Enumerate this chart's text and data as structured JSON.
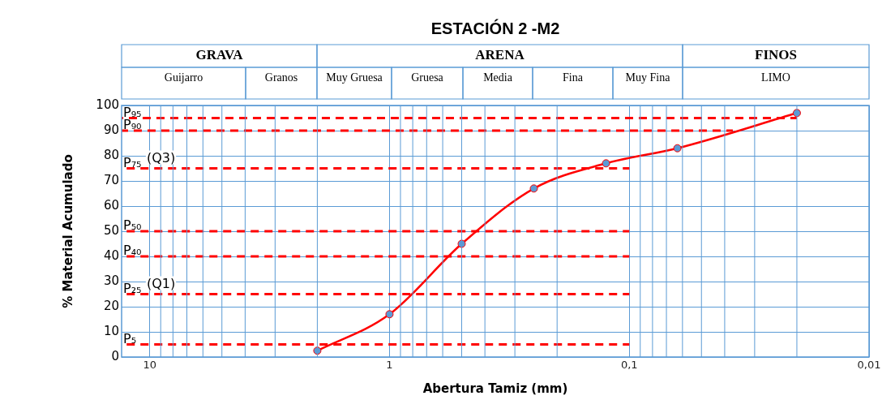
{
  "chart_data": {
    "type": "line",
    "title": "ESTACIÓN 2 -M2",
    "xlabel": "Abertura Tamiz (mm)",
    "ylabel": "% Material Acumulado",
    "xlim": [
      13.1,
      0.01
    ],
    "xticks": [
      10,
      1,
      {
        "value": 0.1,
        "label": "0,1"
      },
      {
        "value": 0.01,
        "label": "0,01"
      }
    ],
    "log": "x",
    "ylim": [
      0,
      100
    ],
    "yticks": [
      0,
      10,
      20,
      30,
      40,
      50,
      60,
      70,
      80,
      90,
      100
    ],
    "grid": true,
    "legend": false,
    "series": [
      {
        "color": "#ff0000",
        "x": [
          2,
          1,
          0.5,
          0.25,
          0.125,
          0.063,
          0.02
        ],
        "values": [
          2.5,
          17,
          45,
          67,
          77,
          83,
          97
        ],
        "marker": "circle",
        "line_style": "solid"
      },
      {
        "name": "P₉₅",
        "color": "#ff0000",
        "x": [
          13.1,
          0.02
        ],
        "values": [
          95,
          95
        ],
        "marker": "none",
        "line_style": "dashed"
      },
      {
        "name": "P₉₀",
        "color": "#ff0000",
        "x": [
          13.1,
          0.037
        ],
        "values": [
          90,
          90
        ],
        "marker": "none",
        "line_style": "dashed"
      },
      {
        "name": "P₇₅",
        "color": "#ff0000",
        "x": [
          13.1,
          0.1
        ],
        "values": [
          75,
          75
        ],
        "marker": "none",
        "line_style": "dashed"
      },
      {
        "name": "P₅₀",
        "color": "#ff0000",
        "x": [
          13.1,
          0.1
        ],
        "values": [
          50,
          50
        ],
        "marker": "none",
        "line_style": "dashed"
      },
      {
        "name": "P₄₀",
        "color": "#ff0000",
        "x": [
          13.1,
          0.1
        ],
        "values": [
          40,
          40
        ],
        "marker": "none",
        "line_style": "dashed"
      },
      {
        "name": "P₂₅",
        "color": "#ff0000",
        "x": [
          13.1,
          0.1
        ],
        "values": [
          25,
          25
        ],
        "marker": "none",
        "line_style": "dashed"
      },
      {
        "name": "P₅",
        "color": "#ff0000",
        "x": [
          13.1,
          0.1
        ],
        "values": [
          5,
          5
        ],
        "marker": "none",
        "line_style": "dashed"
      }
    ],
    "annotations": [
      {
        "text": "(Q3)",
        "x": 10.3,
        "y": 75
      },
      {
        "text": "(Q1)",
        "x": 10.3,
        "y": 25
      },
      "GRAVA",
      "ARENA",
      "FINOS",
      "Guijarro",
      "Granos",
      "Muy Gruesa",
      "Gruesa",
      "Media",
      "Fina",
      "Muy Fina",
      "LIMO"
    ]
  }
}
